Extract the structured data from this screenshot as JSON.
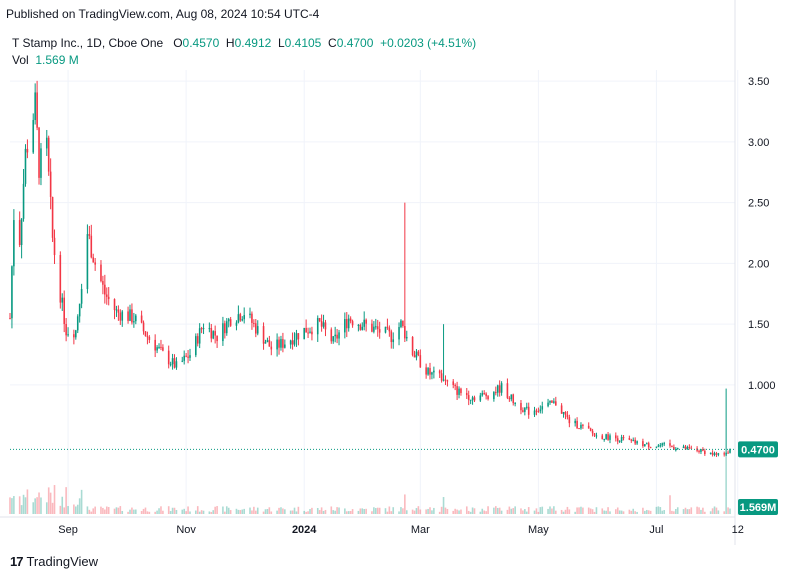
{
  "header": {
    "published": "Published on TradingView.com, Aug 08, 2024 10:54 UTC-4"
  },
  "legend": {
    "symbol": "T Stamp Inc., 1D, Cboe One",
    "o_label": "O",
    "o": "0.4570",
    "h_label": "H",
    "h": "0.4912",
    "l_label": "L",
    "l": "0.4105",
    "c_label": "C",
    "c": "0.4700",
    "change": "+0.0203 (+4.51%)",
    "vol_label": "Vol",
    "vol": "1.569 M"
  },
  "chart_data": {
    "type": "candlestick",
    "y_axis": {
      "ticks": [
        "3.50",
        "3.00",
        "2.50",
        "2.00",
        "1.50",
        "1.000"
      ],
      "tick_values": [
        3.5,
        3.0,
        2.5,
        2.0,
        1.5,
        1.0
      ],
      "range": [
        0.3,
        3.55
      ]
    },
    "x_axis": {
      "ticks": [
        "Sep",
        "Nov",
        "2024",
        "Mar",
        "May",
        "Jul",
        "12"
      ],
      "tick_dates": [
        "2023-09-01",
        "2023-11-01",
        "2024-01-01",
        "2024-03-01",
        "2024-05-01",
        "2024-07-01",
        "2024-08-12"
      ],
      "range": [
        "2023-08-02",
        "2024-08-08"
      ]
    },
    "price_path": [
      [
        "2023-08-02",
        1.55
      ],
      [
        "2023-08-04",
        2.4
      ],
      [
        "2023-08-07",
        2.2
      ],
      [
        "2023-08-10",
        2.9
      ],
      [
        "2023-08-15",
        3.3
      ],
      [
        "2023-08-17",
        2.8
      ],
      [
        "2023-08-21",
        2.95
      ],
      [
        "2023-08-24",
        2.2
      ],
      [
        "2023-08-28",
        1.75
      ],
      [
        "2023-08-31",
        1.45
      ],
      [
        "2023-09-05",
        1.45
      ],
      [
        "2023-09-08",
        1.85
      ],
      [
        "2023-09-11",
        2.25
      ],
      [
        "2023-09-15",
        2.0
      ],
      [
        "2023-09-20",
        1.75
      ],
      [
        "2023-09-26",
        1.6
      ],
      [
        "2023-10-05",
        1.55
      ],
      [
        "2023-10-12",
        1.4
      ],
      [
        "2023-10-20",
        1.25
      ],
      [
        "2023-10-27",
        1.15
      ],
      [
        "2023-11-03",
        1.25
      ],
      [
        "2023-11-10",
        1.5
      ],
      [
        "2023-11-17",
        1.4
      ],
      [
        "2023-11-24",
        1.55
      ],
      [
        "2023-12-01",
        1.6
      ],
      [
        "2023-12-08",
        1.45
      ],
      [
        "2023-12-15",
        1.3
      ],
      [
        "2023-12-22",
        1.35
      ],
      [
        "2024-01-01",
        1.45
      ],
      [
        "2024-01-09",
        1.5
      ],
      [
        "2024-01-16",
        1.35
      ],
      [
        "2024-01-24",
        1.55
      ],
      [
        "2024-01-31",
        1.5
      ],
      [
        "2024-02-08",
        1.45
      ],
      [
        "2024-02-15",
        1.4
      ],
      [
        "2024-02-20",
        1.5
      ],
      [
        "2024-02-27",
        1.25
      ],
      [
        "2024-03-05",
        1.1
      ],
      [
        "2024-03-12",
        1.05
      ],
      [
        "2024-03-20",
        0.95
      ],
      [
        "2024-03-28",
        0.9
      ],
      [
        "2024-04-05",
        0.92
      ],
      [
        "2024-04-12",
        0.98
      ],
      [
        "2024-04-19",
        0.85
      ],
      [
        "2024-04-26",
        0.78
      ],
      [
        "2024-05-03",
        0.82
      ],
      [
        "2024-05-10",
        0.85
      ],
      [
        "2024-05-17",
        0.7
      ],
      [
        "2024-05-24",
        0.65
      ],
      [
        "2024-05-31",
        0.58
      ],
      [
        "2024-06-07",
        0.57
      ],
      [
        "2024-06-14",
        0.55
      ],
      [
        "2024-06-21",
        0.52
      ],
      [
        "2024-06-28",
        0.5
      ],
      [
        "2024-07-05",
        0.5
      ],
      [
        "2024-07-12",
        0.48
      ],
      [
        "2024-07-19",
        0.47
      ],
      [
        "2024-07-26",
        0.45
      ],
      [
        "2024-08-02",
        0.42
      ],
      [
        "2024-08-06",
        0.45
      ],
      [
        "2024-08-08",
        0.47
      ]
    ],
    "spikes": [
      {
        "date": "2024-02-22",
        "high": 2.5
      },
      {
        "date": "2024-03-13",
        "high": 1.5
      },
      {
        "date": "2024-05-26",
        "high": 0.75
      },
      {
        "date": "2024-07-08",
        "high": 0.55
      },
      {
        "date": "2024-08-06",
        "high": 0.97
      },
      {
        "date": "2023-09-09",
        "high": 2.5
      },
      {
        "date": "2023-08-12",
        "high": 3.5
      }
    ],
    "last_price": 0.47,
    "last_price_label": "0.4700",
    "last_volume_label": "1.569M",
    "colors": {
      "up": "#089981",
      "down": "#f23645",
      "grid": "#f0f3fa",
      "price_line": "#089981"
    }
  },
  "branding": {
    "logo": "17",
    "name": "TradingView"
  }
}
